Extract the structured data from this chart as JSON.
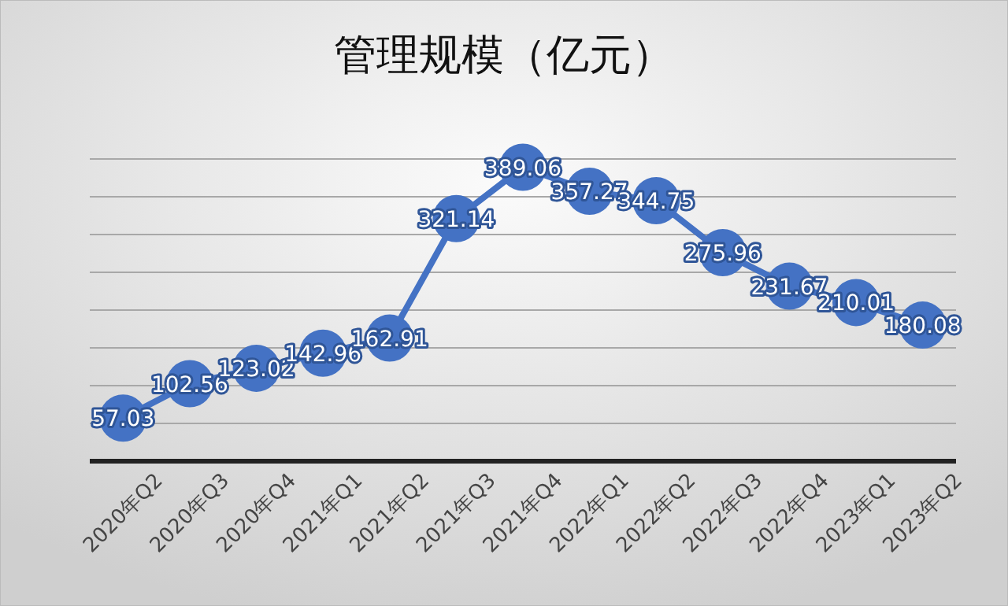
{
  "chart_data": {
    "type": "line",
    "title": "管理规模（亿元）",
    "categories": [
      "2020年Q2",
      "2020年Q3",
      "2020年Q4",
      "2021年Q1",
      "2021年Q2",
      "2021年Q3",
      "2021年Q4",
      "2022年Q1",
      "2022年Q2",
      "2022年Q3",
      "2022年Q4",
      "2023年Q1",
      "2023年Q2"
    ],
    "series": [
      {
        "color": "#4472c4",
        "values": [
          57.03,
          102.56,
          123.02,
          142.96,
          162.91,
          321.14,
          389.06,
          357.27,
          344.75,
          275.96,
          231.67,
          210.01,
          180.08
        ]
      }
    ],
    "ylim": [
      0,
      400
    ],
    "yticks": [
      {
        "value": 0,
        "label": null
      },
      {
        "value": 50,
        "label": null
      },
      {
        "value": 100,
        "label": null
      },
      {
        "value": 150,
        "label": null
      },
      {
        "value": 200,
        "label": null
      },
      {
        "value": 250,
        "label": null
      },
      {
        "value": 300,
        "label": null
      },
      {
        "value": 350,
        "label": null
      },
      {
        "value": 400,
        "label": null
      }
    ],
    "grid": "y",
    "tick_labels": "x",
    "marker": "circle",
    "line_style": "solid",
    "data_labels": true
  }
}
